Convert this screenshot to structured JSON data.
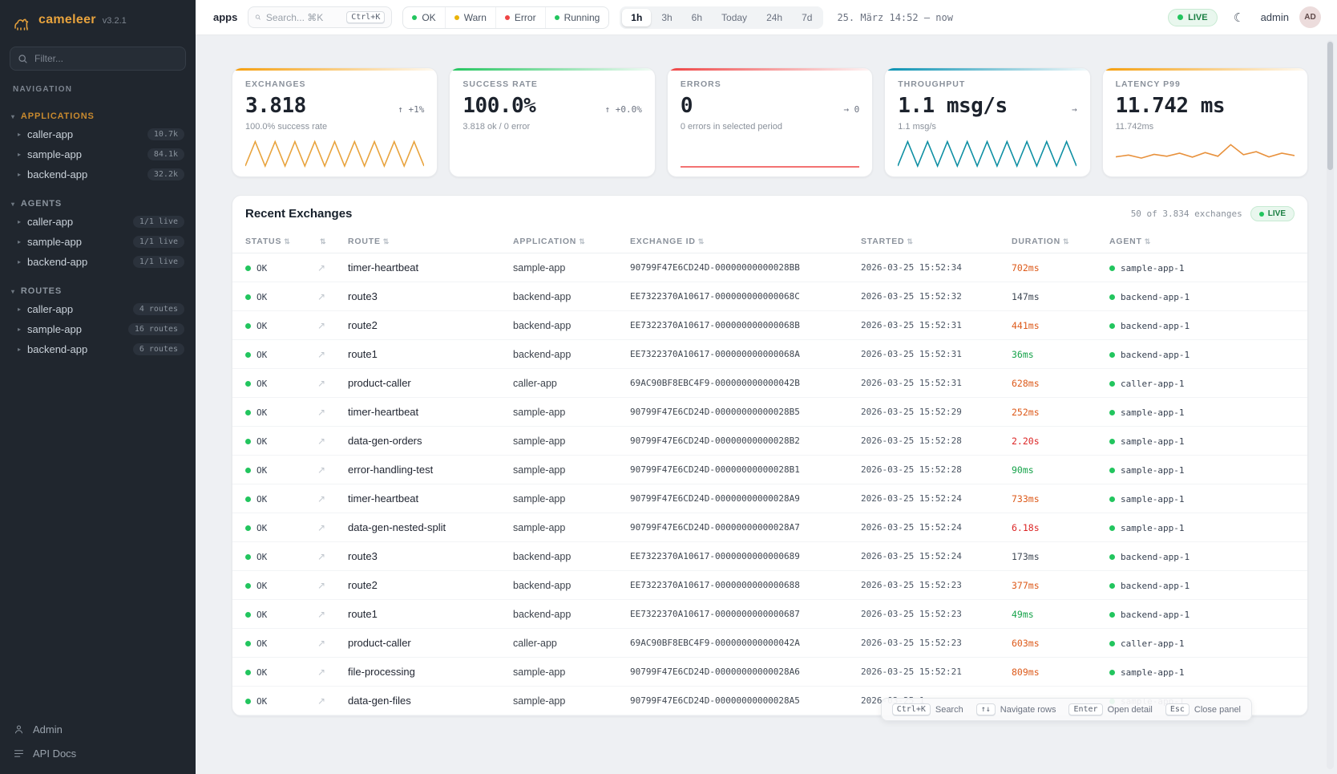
{
  "accent_colors": {
    "amber": "#f59e0b",
    "green": "#22c55e",
    "red": "#ef4444",
    "teal": "#0891b2"
  },
  "sidebar": {
    "brand": "cameleer",
    "version": "v3.2.1",
    "filter_placeholder": "Filter...",
    "nav_label": "NAVIGATION",
    "sections": [
      {
        "title": "APPLICATIONS",
        "accent": "amber",
        "items": [
          {
            "label": "caller-app",
            "badge": "10.7k"
          },
          {
            "label": "sample-app",
            "badge": "84.1k"
          },
          {
            "label": "backend-app",
            "badge": "32.2k"
          }
        ]
      },
      {
        "title": "AGENTS",
        "accent": "gray",
        "items": [
          {
            "label": "caller-app",
            "badge": "1/1 live"
          },
          {
            "label": "sample-app",
            "badge": "1/1 live"
          },
          {
            "label": "backend-app",
            "badge": "1/1 live"
          }
        ]
      },
      {
        "title": "ROUTES",
        "accent": "gray",
        "items": [
          {
            "label": "caller-app",
            "badge": "4 routes"
          },
          {
            "label": "sample-app",
            "badge": "16 routes"
          },
          {
            "label": "backend-app",
            "badge": "6 routes"
          }
        ]
      }
    ],
    "footer": [
      {
        "label": "Admin"
      },
      {
        "label": "API Docs"
      }
    ]
  },
  "topbar": {
    "page_label": "apps",
    "search_placeholder": "Search... ⌘K",
    "search_shortcut": "Ctrl+K",
    "status_filters": [
      {
        "label": "OK",
        "color": "#22c55e"
      },
      {
        "label": "Warn",
        "color": "#eab308"
      },
      {
        "label": "Error",
        "color": "#ef4444"
      },
      {
        "label": "Running",
        "color": "#22c55e"
      }
    ],
    "time_ranges": [
      {
        "label": "1h",
        "active": true
      },
      {
        "label": "3h",
        "active": false
      },
      {
        "label": "6h",
        "active": false
      },
      {
        "label": "Today",
        "active": false
      },
      {
        "label": "24h",
        "active": false
      },
      {
        "label": "7d",
        "active": false
      }
    ],
    "range_text": "25. März 14:52  —  now",
    "live_label": "LIVE",
    "user": "admin",
    "avatar_initials": "AD"
  },
  "stats": [
    {
      "title": "EXCHANGES",
      "value": "3.818",
      "delta": "↑ +1%",
      "sub": "100.0% success rate",
      "accent": "amber",
      "spark": "zigzag",
      "spark_color": "#e8a33d"
    },
    {
      "title": "SUCCESS RATE",
      "value": "100.0%",
      "delta": "↑ +0.0%",
      "sub": "3.818 ok / 0 error",
      "accent": "green",
      "spark": "none",
      "spark_color": ""
    },
    {
      "title": "ERRORS",
      "value": "0",
      "delta": "→ 0",
      "sub": "0 errors in selected period",
      "accent": "red",
      "spark": "flat",
      "spark_color": "#ef4444"
    },
    {
      "title": "THROUGHPUT",
      "value": "1.1 msg/s",
      "delta": "→",
      "sub": "1.1 msg/s",
      "accent": "teal",
      "spark": "zigzag",
      "spark_color": "#0e8fa3"
    },
    {
      "title": "LATENCY P99",
      "value": "11.742 ms",
      "delta": "",
      "sub": "11.742ms",
      "accent": "amber",
      "spark": "wavy",
      "spark_color": "#e8913c"
    }
  ],
  "table": {
    "title": "Recent Exchanges",
    "summary": "50 of 3.834 exchanges",
    "live_label": "LIVE",
    "columns": [
      {
        "label": "STATUS"
      },
      {
        "label": ""
      },
      {
        "label": "ROUTE"
      },
      {
        "label": "APPLICATION"
      },
      {
        "label": "EXCHANGE ID"
      },
      {
        "label": "STARTED"
      },
      {
        "label": "DURATION"
      },
      {
        "label": "AGENT"
      }
    ],
    "rows": [
      {
        "status": "OK",
        "route": "timer-heartbeat",
        "app": "sample-app",
        "id": "90799F47E6CD24D-00000000000028BB",
        "started": "2026-03-25 15:52:34",
        "duration": "702ms",
        "dclass": "slow",
        "agent": "sample-app-1"
      },
      {
        "status": "OK",
        "route": "route3",
        "app": "backend-app",
        "id": "EE7322370A10617-000000000000068C",
        "started": "2026-03-25 15:52:32",
        "duration": "147ms",
        "dclass": "normal",
        "agent": "backend-app-1"
      },
      {
        "status": "OK",
        "route": "route2",
        "app": "backend-app",
        "id": "EE7322370A10617-000000000000068B",
        "started": "2026-03-25 15:52:31",
        "duration": "441ms",
        "dclass": "slow",
        "agent": "backend-app-1"
      },
      {
        "status": "OK",
        "route": "route1",
        "app": "backend-app",
        "id": "EE7322370A10617-000000000000068A",
        "started": "2026-03-25 15:52:31",
        "duration": "36ms",
        "dclass": "fast",
        "agent": "backend-app-1"
      },
      {
        "status": "OK",
        "route": "product-caller",
        "app": "caller-app",
        "id": "69AC90BF8EBC4F9-000000000000042B",
        "started": "2026-03-25 15:52:31",
        "duration": "628ms",
        "dclass": "slow",
        "agent": "caller-app-1"
      },
      {
        "status": "OK",
        "route": "timer-heartbeat",
        "app": "sample-app",
        "id": "90799F47E6CD24D-00000000000028B5",
        "started": "2026-03-25 15:52:29",
        "duration": "252ms",
        "dclass": "slow",
        "agent": "sample-app-1"
      },
      {
        "status": "OK",
        "route": "data-gen-orders",
        "app": "sample-app",
        "id": "90799F47E6CD24D-00000000000028B2",
        "started": "2026-03-25 15:52:28",
        "duration": "2.20s",
        "dclass": "veryslow",
        "agent": "sample-app-1"
      },
      {
        "status": "OK",
        "route": "error-handling-test",
        "app": "sample-app",
        "id": "90799F47E6CD24D-00000000000028B1",
        "started": "2026-03-25 15:52:28",
        "duration": "90ms",
        "dclass": "fast",
        "agent": "sample-app-1"
      },
      {
        "status": "OK",
        "route": "timer-heartbeat",
        "app": "sample-app",
        "id": "90799F47E6CD24D-00000000000028A9",
        "started": "2026-03-25 15:52:24",
        "duration": "733ms",
        "dclass": "slow",
        "agent": "sample-app-1"
      },
      {
        "status": "OK",
        "route": "data-gen-nested-split",
        "app": "sample-app",
        "id": "90799F47E6CD24D-00000000000028A7",
        "started": "2026-03-25 15:52:24",
        "duration": "6.18s",
        "dclass": "veryslow",
        "agent": "sample-app-1"
      },
      {
        "status": "OK",
        "route": "route3",
        "app": "backend-app",
        "id": "EE7322370A10617-0000000000000689",
        "started": "2026-03-25 15:52:24",
        "duration": "173ms",
        "dclass": "normal",
        "agent": "backend-app-1"
      },
      {
        "status": "OK",
        "route": "route2",
        "app": "backend-app",
        "id": "EE7322370A10617-0000000000000688",
        "started": "2026-03-25 15:52:23",
        "duration": "377ms",
        "dclass": "slow",
        "agent": "backend-app-1"
      },
      {
        "status": "OK",
        "route": "route1",
        "app": "backend-app",
        "id": "EE7322370A10617-0000000000000687",
        "started": "2026-03-25 15:52:23",
        "duration": "49ms",
        "dclass": "fast",
        "agent": "backend-app-1"
      },
      {
        "status": "OK",
        "route": "product-caller",
        "app": "caller-app",
        "id": "69AC90BF8EBC4F9-000000000000042A",
        "started": "2026-03-25 15:52:23",
        "duration": "603ms",
        "dclass": "slow",
        "agent": "caller-app-1"
      },
      {
        "status": "OK",
        "route": "file-processing",
        "app": "sample-app",
        "id": "90799F47E6CD24D-00000000000028A6",
        "started": "2026-03-25 15:52:21",
        "duration": "809ms",
        "dclass": "slow",
        "agent": "sample-app-1"
      },
      {
        "status": "OK",
        "route": "data-gen-files",
        "app": "sample-app",
        "id": "90799F47E6CD24D-00000000000028A5",
        "started": "2026-03-25 1",
        "duration": "",
        "dclass": "normal",
        "agent": "sample-app-1"
      }
    ]
  },
  "hints": [
    {
      "key": "Ctrl+K",
      "label": "Search"
    },
    {
      "key": "↑↓",
      "label": "Navigate rows"
    },
    {
      "key": "Enter",
      "label": "Open detail"
    },
    {
      "key": "Esc",
      "label": "Close panel"
    }
  ]
}
